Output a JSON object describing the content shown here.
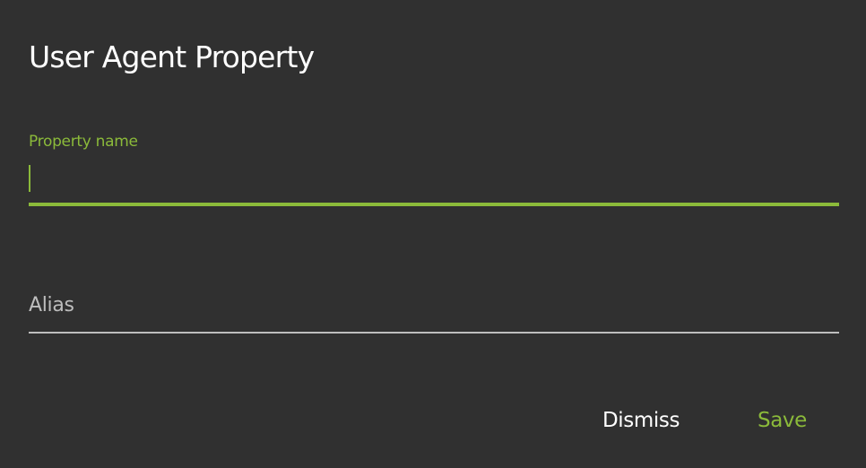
{
  "dialog": {
    "title": "User Agent Property",
    "property_name": {
      "label": "Property name",
      "value": "",
      "focused": true
    },
    "alias": {
      "label": "Alias",
      "value": ""
    },
    "buttons": {
      "dismiss": "Dismiss",
      "save": "Save"
    },
    "colors": {
      "accent": "#8bba3a",
      "background": "#303030",
      "inactive": "#bdbdbd"
    }
  }
}
